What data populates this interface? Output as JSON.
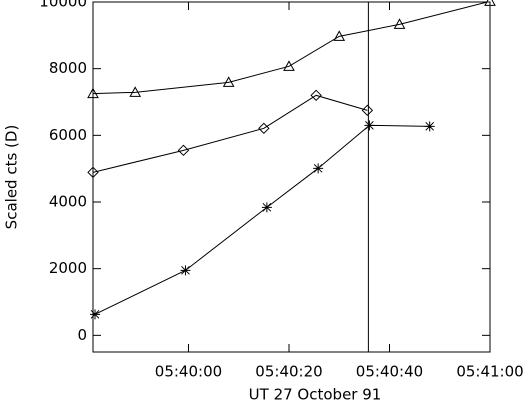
{
  "chart_data": {
    "type": "line",
    "ylabel": "Scaled cts (D)",
    "xlabel": "UT 27 October 91",
    "xlim": [
      20381,
      20460
    ],
    "ylim": [
      -500,
      10000
    ],
    "xticks": [
      {
        "value": 20400,
        "label": "05:40:00"
      },
      {
        "value": 20420,
        "label": "05:40:20"
      },
      {
        "value": 20440,
        "label": "05:40:40"
      },
      {
        "value": 20460,
        "label": "05:41:00"
      }
    ],
    "yticks": [
      0,
      2000,
      4000,
      6000,
      8000,
      10000
    ],
    "vline": 20435.8,
    "series": [
      {
        "marker": "triangle",
        "color": "#000000",
        "x": [
          20381,
          20389.4,
          20408,
          20420,
          20430,
          20442,
          20460
        ],
        "values": [
          7250,
          7290,
          7590,
          8070,
          8970,
          9330,
          10020
        ]
      },
      {
        "marker": "diamond",
        "color": "#000000",
        "x": [
          20381,
          20399,
          20415,
          20425.4,
          20435.6
        ],
        "values": [
          4890,
          5550,
          6210,
          7200,
          6750
        ]
      },
      {
        "marker": "star",
        "color": "#000000",
        "x": [
          20381.4,
          20399.4,
          20415.6,
          20425.8,
          20436,
          20448
        ],
        "values": [
          630,
          1950,
          3840,
          5010,
          6300,
          6270
        ]
      }
    ]
  }
}
